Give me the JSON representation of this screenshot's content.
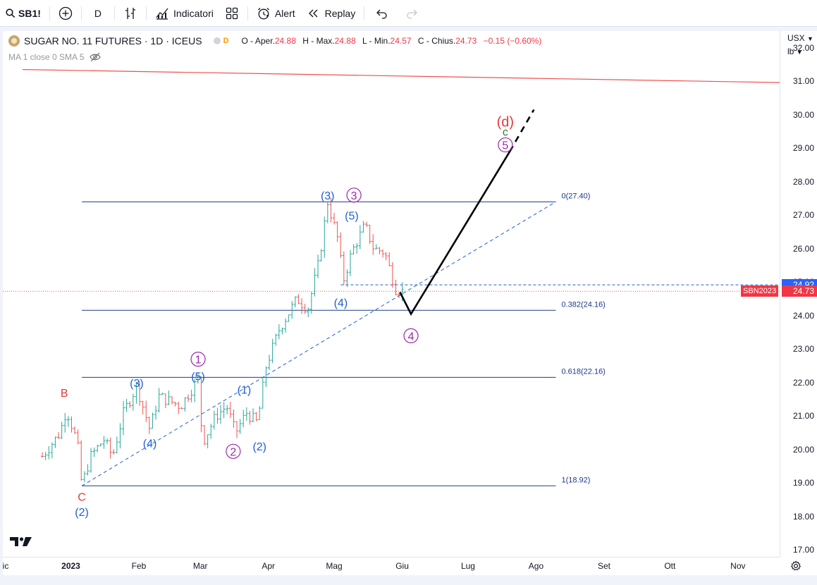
{
  "toolbar": {
    "symbol": "SB1!",
    "interval": "D",
    "indicators_label": "Indicatori",
    "alert_label": "Alert",
    "replay_label": "Replay"
  },
  "legend": {
    "title": "SUGAR NO. 11 FUTURES · 1D · ICEUS",
    "badge": "D",
    "o_label": "O - Aper.",
    "o": "24.88",
    "h_label": "H - Max.",
    "h": "24.88",
    "l_label": "L - Min.",
    "l": "24.57",
    "c_label": "C - Chius.",
    "c": "24.73",
    "change": "−0.15 (−0.60%)",
    "ma_label": "MA 1 close 0 SMA 5"
  },
  "price_axis": {
    "currency": "USX",
    "unit": "lb",
    "labels": [
      "32.00",
      "31.00",
      "30.00",
      "29.00",
      "28.00",
      "27.00",
      "26.00",
      "25.00",
      "24.00",
      "23.00",
      "22.00",
      "21.00",
      "20.00",
      "19.00",
      "18.00",
      "17.00"
    ],
    "ref_price": "24.92",
    "last_price": "24.73",
    "symbol_badge": "SBN2023"
  },
  "time_axis": {
    "labels": [
      "ic",
      "2023",
      "Feb",
      "Mar",
      "Apr",
      "Mag",
      "Giu",
      "Lug",
      "Ago",
      "Set",
      "Ott",
      "Nov"
    ]
  },
  "chart_data": {
    "type": "candlestick",
    "title": "SUGAR NO. 11 FUTURES · 1D · ICEUS",
    "ylim": [
      16.8,
      32.5
    ],
    "colors": {
      "up": "#26a69a",
      "down": "#ef5350",
      "fib": "#1e3a8a",
      "trend": "#1f5fd6",
      "resistance": "#f05050",
      "projection": "#000000",
      "blue_labels": "#1f5fd6",
      "purple_labels": "#9c27b0",
      "red_labels": "#e53935",
      "green_labels": "#2e7d32"
    },
    "price_key_points": [
      {
        "date": "2022-12-19",
        "price": 19.8
      },
      {
        "date": "2022-12-27",
        "price": 20.5
      },
      {
        "date": "2022-12-30",
        "price": 21.2
      },
      {
        "date": "2023-01-04",
        "price": 20.2
      },
      {
        "date": "2023-01-06",
        "price": 18.92
      },
      {
        "date": "2023-01-10",
        "price": 19.8
      },
      {
        "date": "2023-01-16",
        "price": 20.3
      },
      {
        "date": "2023-01-20",
        "price": 19.8
      },
      {
        "date": "2023-01-25",
        "price": 21.1
      },
      {
        "date": "2023-01-31",
        "price": 21.9
      },
      {
        "date": "2023-02-06",
        "price": 20.6
      },
      {
        "date": "2023-02-10",
        "price": 21.6
      },
      {
        "date": "2023-02-20",
        "price": 21.3
      },
      {
        "date": "2023-02-28",
        "price": 22.1
      },
      {
        "date": "2023-03-02",
        "price": 20.2
      },
      {
        "date": "2023-03-08",
        "price": 21.0
      },
      {
        "date": "2023-03-13",
        "price": 21.3
      },
      {
        "date": "2023-03-17",
        "price": 20.5
      },
      {
        "date": "2023-03-22",
        "price": 21.1
      },
      {
        "date": "2023-03-27",
        "price": 20.8
      },
      {
        "date": "2023-03-31",
        "price": 22.5
      },
      {
        "date": "2023-04-06",
        "price": 23.6
      },
      {
        "date": "2023-04-14",
        "price": 24.5
      },
      {
        "date": "2023-04-19",
        "price": 24.2
      },
      {
        "date": "2023-04-24",
        "price": 25.6
      },
      {
        "date": "2023-04-28",
        "price": 27.4
      },
      {
        "date": "2023-05-03",
        "price": 26.2
      },
      {
        "date": "2023-05-05",
        "price": 25.0
      },
      {
        "date": "2023-05-09",
        "price": 25.9
      },
      {
        "date": "2023-05-15",
        "price": 26.7
      },
      {
        "date": "2023-05-19",
        "price": 26.0
      },
      {
        "date": "2023-05-24",
        "price": 25.9
      },
      {
        "date": "2023-05-29",
        "price": 24.8
      },
      {
        "date": "2023-06-01",
        "price": 24.73
      }
    ],
    "fib_levels": [
      {
        "ratio": "0",
        "value": 27.4,
        "label": "0(27.40)"
      },
      {
        "ratio": "0.382",
        "value": 24.16,
        "label": "0.382(24.16)"
      },
      {
        "ratio": "0.618",
        "value": 22.16,
        "label": "0.618(22.16)"
      },
      {
        "ratio": "1",
        "value": 18.92,
        "label": "1(18.92)"
      }
    ],
    "wave_labels": [
      {
        "text": "B",
        "color": "red",
        "date": "2022-12-29",
        "price": 21.7,
        "circle": false
      },
      {
        "text": "C",
        "color": "red",
        "date": "2023-01-06",
        "price": 18.6,
        "circle": false
      },
      {
        "text": "(2)",
        "color": "blue",
        "date": "2023-01-06",
        "price": 18.15,
        "circle": false
      },
      {
        "text": "(3)",
        "color": "blue",
        "date": "2023-01-31",
        "price": 22.0,
        "circle": false
      },
      {
        "text": "(4)",
        "color": "blue",
        "date": "2023-02-06",
        "price": 20.2,
        "circle": false
      },
      {
        "text": "1",
        "color": "purple",
        "date": "2023-02-28",
        "price": 22.7,
        "circle": true
      },
      {
        "text": "(5)",
        "color": "blue",
        "date": "2023-02-28",
        "price": 22.2,
        "circle": false
      },
      {
        "text": "2",
        "color": "purple",
        "date": "2023-03-16",
        "price": 19.95,
        "circle": true
      },
      {
        "text": "(1)",
        "color": "blue",
        "date": "2023-03-21",
        "price": 21.8,
        "circle": false
      },
      {
        "text": "(2)",
        "color": "blue",
        "date": "2023-03-28",
        "price": 20.1,
        "circle": false
      },
      {
        "text": "(3)",
        "color": "blue",
        "date": "2023-04-28",
        "price": 27.6,
        "circle": false
      },
      {
        "text": "3",
        "color": "purple",
        "date": "2023-05-10",
        "price": 27.6,
        "circle": true
      },
      {
        "text": "(5)",
        "color": "blue",
        "date": "2023-05-09",
        "price": 27.0,
        "circle": false
      },
      {
        "text": "(4)",
        "color": "blue",
        "date": "2023-05-04",
        "price": 24.4,
        "circle": false
      },
      {
        "text": "4",
        "color": "purple",
        "date": "2023-06-05",
        "price": 23.4,
        "circle": true
      },
      {
        "text": "5",
        "color": "purple",
        "date": "2023-07-18",
        "price": 29.1,
        "circle": true
      },
      {
        "text": "c",
        "color": "green",
        "date": "2023-07-18",
        "price": 29.5,
        "circle": false
      },
      {
        "text": "(d)",
        "color": "red",
        "date": "2023-07-18",
        "price": 29.8,
        "circle": false
      }
    ],
    "projection": [
      {
        "date": "2023-05-31",
        "price": 24.7
      },
      {
        "date": "2023-06-05",
        "price": 24.05
      },
      {
        "date": "2023-07-20",
        "price": 28.9
      }
    ],
    "projection_extension": [
      {
        "date": "2023-07-20",
        "price": 28.9
      },
      {
        "date": "2023-07-31",
        "price": 30.15
      }
    ],
    "trendline": [
      {
        "date": "2023-01-06",
        "price": 18.92
      },
      {
        "date": "2023-08-10",
        "price": 27.4
      }
    ],
    "resistance_line": [
      {
        "date": "2022-12-10",
        "price": 31.35
      },
      {
        "date": "2023-11-30",
        "price": 30.95
      }
    ],
    "ref_level": {
      "from": "2023-05-04",
      "price": 24.92
    },
    "last_level": {
      "price": 24.73
    }
  }
}
